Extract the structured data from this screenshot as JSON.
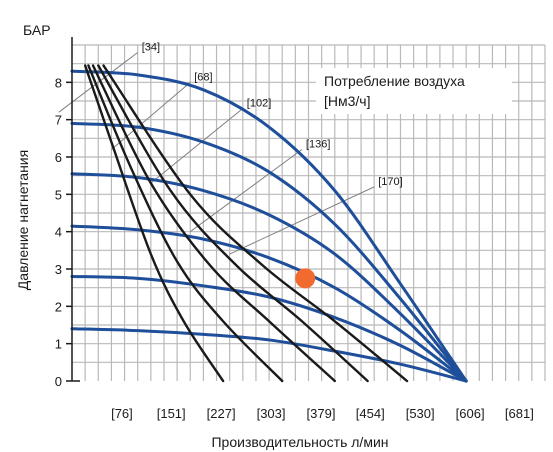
{
  "chart_data": {
    "type": "line",
    "y_unit_label": "БАР",
    "ylabel": "Давление нагнетания",
    "xlabel": "Производительность л/мин",
    "x_ticks": [
      "[76]",
      "[151]",
      "[227]",
      "[303]",
      "[379]",
      "[454]",
      "[530]",
      "[606]",
      "[681]"
    ],
    "x_tick_values": [
      76,
      151,
      227,
      303,
      379,
      454,
      530,
      606,
      681
    ],
    "y_ticks": [
      "0",
      "1",
      "2",
      "3",
      "4",
      "5",
      "6",
      "7",
      "8"
    ],
    "xlim": [
      0,
      720
    ],
    "ylim": [
      0,
      9
    ],
    "grid": true,
    "legend": {
      "line1": "Потребление воздуха",
      "line2": "[Нм3/ч]",
      "placement": "top-right"
    },
    "colors": {
      "pressure_curves": "#1f4f9a",
      "air_curves": "#1a1a1a",
      "grid": "#b9b9b9",
      "point": "#f26a2e",
      "guide": "#808080"
    },
    "pressure_curves": [
      {
        "points": [
          [
            0,
            8.3
          ],
          [
            100,
            8.2
          ],
          [
            200,
            7.8
          ],
          [
            300,
            6.8
          ],
          [
            400,
            5.1
          ],
          [
            500,
            2.6
          ],
          [
            600,
            0
          ]
        ]
      },
      {
        "points": [
          [
            0,
            6.9
          ],
          [
            100,
            6.8
          ],
          [
            200,
            6.4
          ],
          [
            300,
            5.6
          ],
          [
            400,
            4.2
          ],
          [
            500,
            2.2
          ],
          [
            600,
            0
          ]
        ]
      },
      {
        "points": [
          [
            0,
            5.55
          ],
          [
            100,
            5.45
          ],
          [
            200,
            5.1
          ],
          [
            300,
            4.45
          ],
          [
            400,
            3.4
          ],
          [
            500,
            1.8
          ],
          [
            600,
            0
          ]
        ]
      },
      {
        "points": [
          [
            0,
            4.15
          ],
          [
            100,
            4.05
          ],
          [
            200,
            3.8
          ],
          [
            300,
            3.3
          ],
          [
            400,
            2.5
          ],
          [
            500,
            1.35
          ],
          [
            600,
            0
          ]
        ]
      },
      {
        "points": [
          [
            0,
            2.8
          ],
          [
            100,
            2.75
          ],
          [
            200,
            2.55
          ],
          [
            300,
            2.25
          ],
          [
            400,
            1.7
          ],
          [
            500,
            0.95
          ],
          [
            600,
            0
          ]
        ]
      },
      {
        "points": [
          [
            0,
            1.4
          ],
          [
            100,
            1.35
          ],
          [
            200,
            1.25
          ],
          [
            300,
            1.1
          ],
          [
            400,
            0.8
          ],
          [
            500,
            0.45
          ],
          [
            600,
            0
          ]
        ]
      }
    ],
    "air_curves": [
      {
        "points": [
          [
            20,
            8.45
          ],
          [
            60,
            6.4
          ],
          [
            120,
            3.4
          ],
          [
            170,
            1.6
          ],
          [
            230,
            0
          ]
        ]
      },
      {
        "points": [
          [
            25,
            8.45
          ],
          [
            90,
            5.7
          ],
          [
            160,
            3.2
          ],
          [
            230,
            1.6
          ],
          [
            320,
            0
          ]
        ]
      },
      {
        "points": [
          [
            32,
            8.45
          ],
          [
            120,
            5.3
          ],
          [
            210,
            3.1
          ],
          [
            300,
            1.6
          ],
          [
            400,
            0
          ]
        ]
      },
      {
        "points": [
          [
            40,
            8.45
          ],
          [
            150,
            5.1
          ],
          [
            250,
            3.1
          ],
          [
            350,
            1.6
          ],
          [
            450,
            0
          ]
        ]
      },
      {
        "points": [
          [
            48,
            8.45
          ],
          [
            180,
            5.0
          ],
          [
            290,
            3.1
          ],
          [
            400,
            1.6
          ],
          [
            510,
            0
          ]
        ]
      }
    ],
    "air_guides": [
      {
        "label": "[34]",
        "from": [
          -20,
          7.2
        ],
        "to": [
          100,
          8.8
        ]
      },
      {
        "label": "[68]",
        "from": [
          60,
          6.2
        ],
        "to": [
          180,
          8.0
        ]
      },
      {
        "label": "[102]",
        "from": [
          120,
          5.3
        ],
        "to": [
          260,
          7.3
        ]
      },
      {
        "label": "[136]",
        "from": [
          180,
          4.0
        ],
        "to": [
          350,
          6.2
        ]
      },
      {
        "label": "[170]",
        "from": [
          240,
          3.4
        ],
        "to": [
          460,
          5.2
        ]
      }
    ],
    "highlight_point": {
      "x": 355,
      "y": 2.75
    }
  }
}
